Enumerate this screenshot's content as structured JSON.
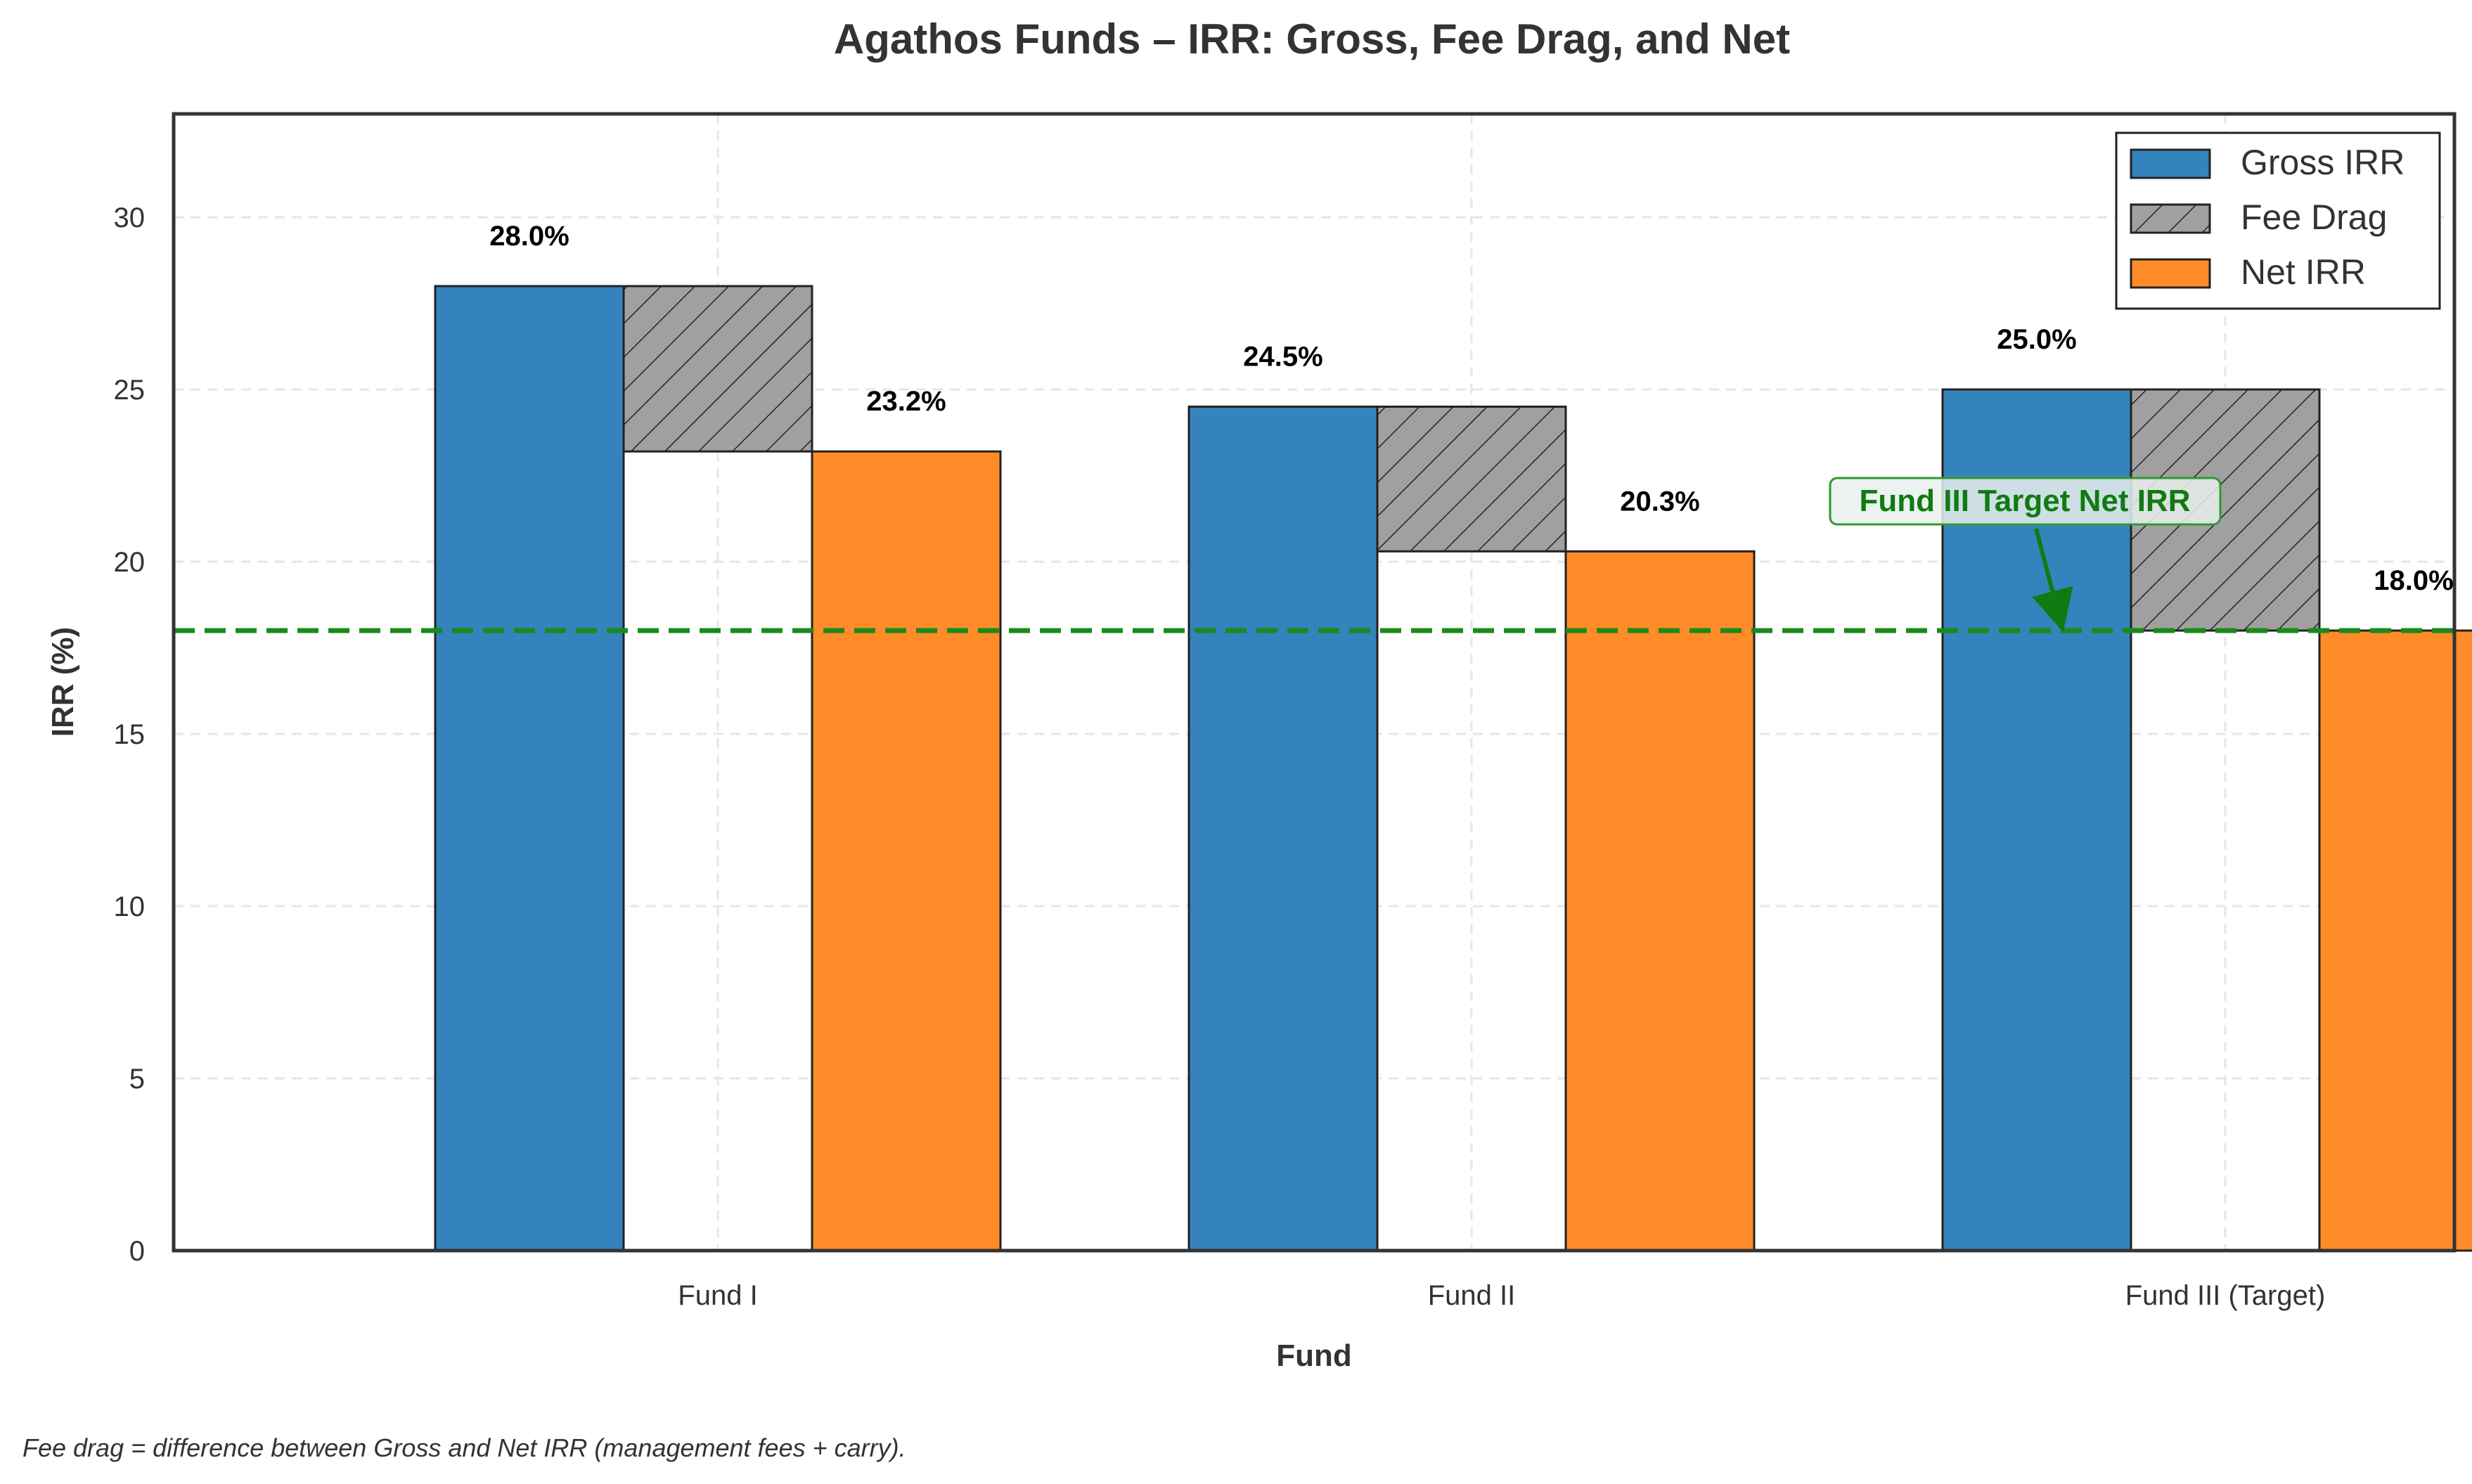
{
  "chart_data": {
    "type": "bar",
    "title": "Agathos Funds – IRR: Gross, Fee Drag, and Net",
    "xlabel": "Fund",
    "ylabel": "IRR (%)",
    "ylim": [
      0,
      33
    ],
    "yticks": [
      0,
      5,
      10,
      15,
      20,
      25,
      30
    ],
    "grid": true,
    "legend_position": "top-right",
    "categories": [
      "Fund I",
      "Fund II",
      "Fund III (Target)"
    ],
    "series": [
      {
        "name": "Gross IRR",
        "values": [
          28.0,
          24.5,
          25.0
        ],
        "color": "#3583bc"
      },
      {
        "name": "Fee Drag",
        "values": [
          4.8,
          4.2,
          7.0
        ],
        "color": "#a0a0a0",
        "pattern": "hatch"
      },
      {
        "name": "Net IRR",
        "values": [
          23.2,
          20.3,
          18.0
        ],
        "color": "#ff8c28"
      }
    ],
    "gross_labels": [
      "28.0%",
      "24.5%",
      "25.0%"
    ],
    "net_labels": [
      "23.2%",
      "20.3%",
      "18.0%"
    ],
    "reference_line": {
      "value": 18.0,
      "color": "#1a8a1a",
      "style": "dashed"
    },
    "annotation": {
      "text": "Fund III Target Net IRR",
      "color": "#117a11"
    },
    "footnote": "Fee drag = difference between Gross and Net IRR (management fees + carry)."
  }
}
